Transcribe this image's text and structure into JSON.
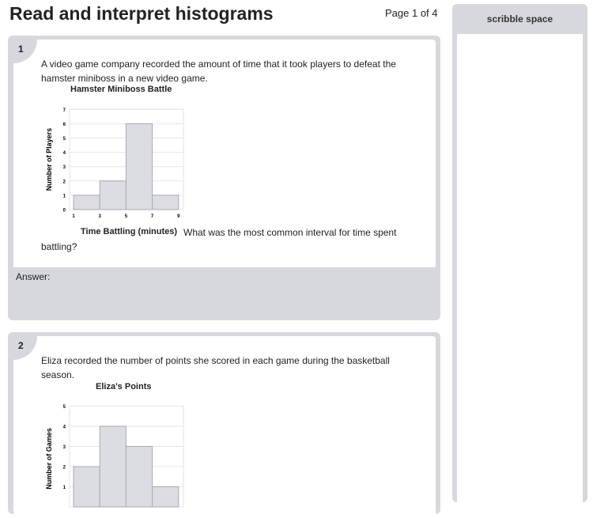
{
  "header": {
    "title": "Read and interpret histograms",
    "page": "Page 1 of 4"
  },
  "sidebar": {
    "title": "scribble space"
  },
  "questions": [
    {
      "number": "1",
      "text": "A video game company recorded the amount of time that it took players to defeat the hamster miniboss in a new video game.",
      "after": "What was the most common interval for time spent battling?",
      "answer_label": "Answer:"
    },
    {
      "number": "2",
      "text": "Eliza recorded the number of points she scored in each game during the basketball season."
    }
  ],
  "chart_data": [
    {
      "type": "bar",
      "title": "Hamster Miniboss Battle",
      "xlabel": "Time Battling (minutes)",
      "ylabel": "Number of Players",
      "bins": [
        [
          1,
          3
        ],
        [
          3,
          5
        ],
        [
          5,
          7
        ],
        [
          7,
          9
        ]
      ],
      "values": [
        1,
        2,
        6,
        1
      ],
      "xticks": [
        "1",
        "3",
        "5",
        "7",
        "9"
      ],
      "yticks": [
        "0",
        "1",
        "2",
        "3",
        "4",
        "5",
        "6",
        "7"
      ],
      "ylim": [
        0,
        7
      ],
      "grid": true,
      "bar_color": "#dcdce3"
    },
    {
      "type": "bar",
      "title": "Eliza's Points",
      "xlabel": "",
      "ylabel": "Number of Games",
      "values": [
        2,
        4,
        3,
        1
      ],
      "yticks": [
        "1",
        "2",
        "3",
        "4",
        "5"
      ],
      "ylim": [
        0,
        5
      ],
      "grid": true,
      "bar_color": "#dcdce3"
    }
  ]
}
